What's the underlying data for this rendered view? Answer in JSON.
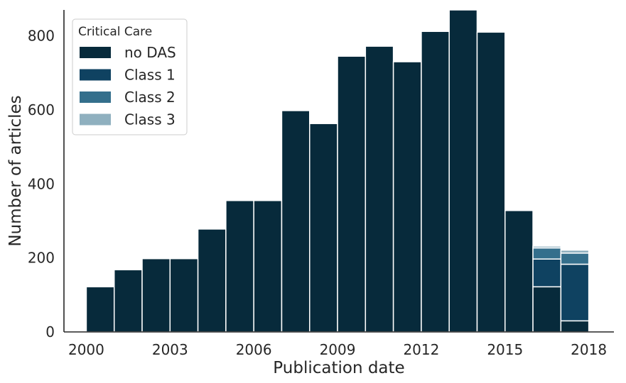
{
  "chart_data": {
    "type": "bar",
    "stacked": true,
    "xlabel": "Publication date",
    "ylabel": "Number of articles",
    "xlim": [
      1999.2,
      2018.9
    ],
    "ylim": [
      0,
      870
    ],
    "x_ticks": [
      2000,
      2003,
      2006,
      2009,
      2012,
      2015,
      2018
    ],
    "y_ticks": [
      0,
      200,
      400,
      600,
      800
    ],
    "bin_starts": [
      2000,
      2001,
      2002,
      2003,
      2004,
      2005,
      2006,
      2007,
      2008,
      2009,
      2010,
      2011,
      2012,
      2013,
      2014,
      2015,
      2016,
      2017
    ],
    "bin_width": 1,
    "legend": {
      "title": "Critical Care",
      "position": "top-left"
    },
    "series": [
      {
        "name": "no DAS",
        "color": "#072a3b",
        "values": [
          122,
          168,
          198,
          198,
          278,
          355,
          355,
          598,
          563,
          745,
          772,
          730,
          812,
          870,
          810,
          328,
          122,
          30
        ]
      },
      {
        "name": "Class 1",
        "color": "#0f4261",
        "values": [
          0,
          0,
          0,
          0,
          0,
          0,
          0,
          0,
          0,
          0,
          0,
          0,
          0,
          0,
          0,
          0,
          75,
          153
        ]
      },
      {
        "name": "Class 2",
        "color": "#346f8c",
        "values": [
          0,
          0,
          0,
          0,
          0,
          0,
          0,
          0,
          0,
          0,
          0,
          0,
          0,
          0,
          0,
          0,
          30,
          30
        ]
      },
      {
        "name": "Class 3",
        "color": "#8fb0bf",
        "values": [
          0,
          0,
          0,
          0,
          0,
          0,
          0,
          0,
          0,
          0,
          0,
          0,
          0,
          0,
          0,
          0,
          5,
          8
        ]
      }
    ]
  }
}
